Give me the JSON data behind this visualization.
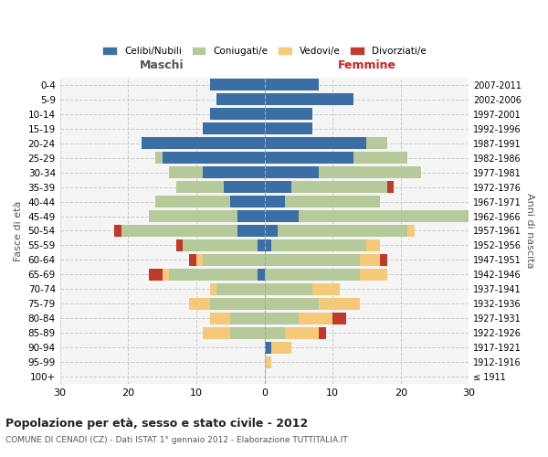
{
  "age_groups": [
    "100+",
    "95-99",
    "90-94",
    "85-89",
    "80-84",
    "75-79",
    "70-74",
    "65-69",
    "60-64",
    "55-59",
    "50-54",
    "45-49",
    "40-44",
    "35-39",
    "30-34",
    "25-29",
    "20-24",
    "15-19",
    "10-14",
    "5-9",
    "0-4"
  ],
  "birth_years": [
    "≤ 1911",
    "1912-1916",
    "1917-1921",
    "1922-1926",
    "1927-1931",
    "1932-1936",
    "1937-1941",
    "1942-1946",
    "1947-1951",
    "1952-1956",
    "1957-1961",
    "1962-1966",
    "1967-1971",
    "1972-1976",
    "1977-1981",
    "1982-1986",
    "1987-1991",
    "1992-1996",
    "1997-2001",
    "2002-2006",
    "2007-2011"
  ],
  "colors": {
    "celibi": "#3a6ea5",
    "coniugati": "#b5c99a",
    "vedovi": "#f5c97a",
    "divorziati": "#c0392b"
  },
  "males": {
    "celibi": [
      0,
      0,
      0,
      0,
      0,
      0,
      0,
      1,
      0,
      1,
      4,
      4,
      5,
      6,
      9,
      15,
      18,
      9,
      8,
      7,
      8
    ],
    "coniugati": [
      0,
      0,
      0,
      5,
      5,
      8,
      7,
      13,
      9,
      11,
      17,
      13,
      11,
      7,
      5,
      1,
      0,
      0,
      0,
      0,
      0
    ],
    "vedovi": [
      0,
      0,
      0,
      4,
      3,
      3,
      1,
      1,
      1,
      0,
      0,
      0,
      0,
      0,
      0,
      0,
      0,
      0,
      0,
      0,
      0
    ],
    "divorziati": [
      0,
      0,
      0,
      0,
      0,
      0,
      0,
      2,
      1,
      1,
      1,
      0,
      0,
      0,
      0,
      0,
      0,
      0,
      0,
      0,
      0
    ]
  },
  "females": {
    "celibi": [
      0,
      0,
      1,
      0,
      0,
      0,
      0,
      0,
      0,
      1,
      2,
      5,
      3,
      4,
      8,
      13,
      15,
      7,
      7,
      13,
      8
    ],
    "coniugati": [
      0,
      0,
      0,
      3,
      5,
      8,
      7,
      14,
      14,
      14,
      19,
      25,
      14,
      14,
      15,
      8,
      3,
      0,
      0,
      0,
      0
    ],
    "vedovi": [
      0,
      1,
      3,
      5,
      5,
      6,
      4,
      4,
      3,
      2,
      1,
      1,
      0,
      0,
      0,
      0,
      0,
      0,
      0,
      0,
      0
    ],
    "divorziati": [
      0,
      0,
      0,
      1,
      2,
      0,
      0,
      0,
      1,
      0,
      0,
      0,
      0,
      1,
      0,
      0,
      0,
      0,
      0,
      0,
      0
    ]
  },
  "title": "Popolazione per età, sesso e stato civile - 2012",
  "subtitle": "COMUNE DI CENADI (CZ) - Dati ISTAT 1° gennaio 2012 - Elaborazione TUTTITALIA.IT",
  "xlabel_left": "Maschi",
  "xlabel_right": "Femmine",
  "ylabel_left": "Fasce di età",
  "ylabel_right": "Anni di nascita",
  "xlim": 30,
  "legend_labels": [
    "Celibi/Nubili",
    "Coniugati/e",
    "Vedovi/e",
    "Divorziati/e"
  ],
  "bg_color": "#f5f5f5"
}
